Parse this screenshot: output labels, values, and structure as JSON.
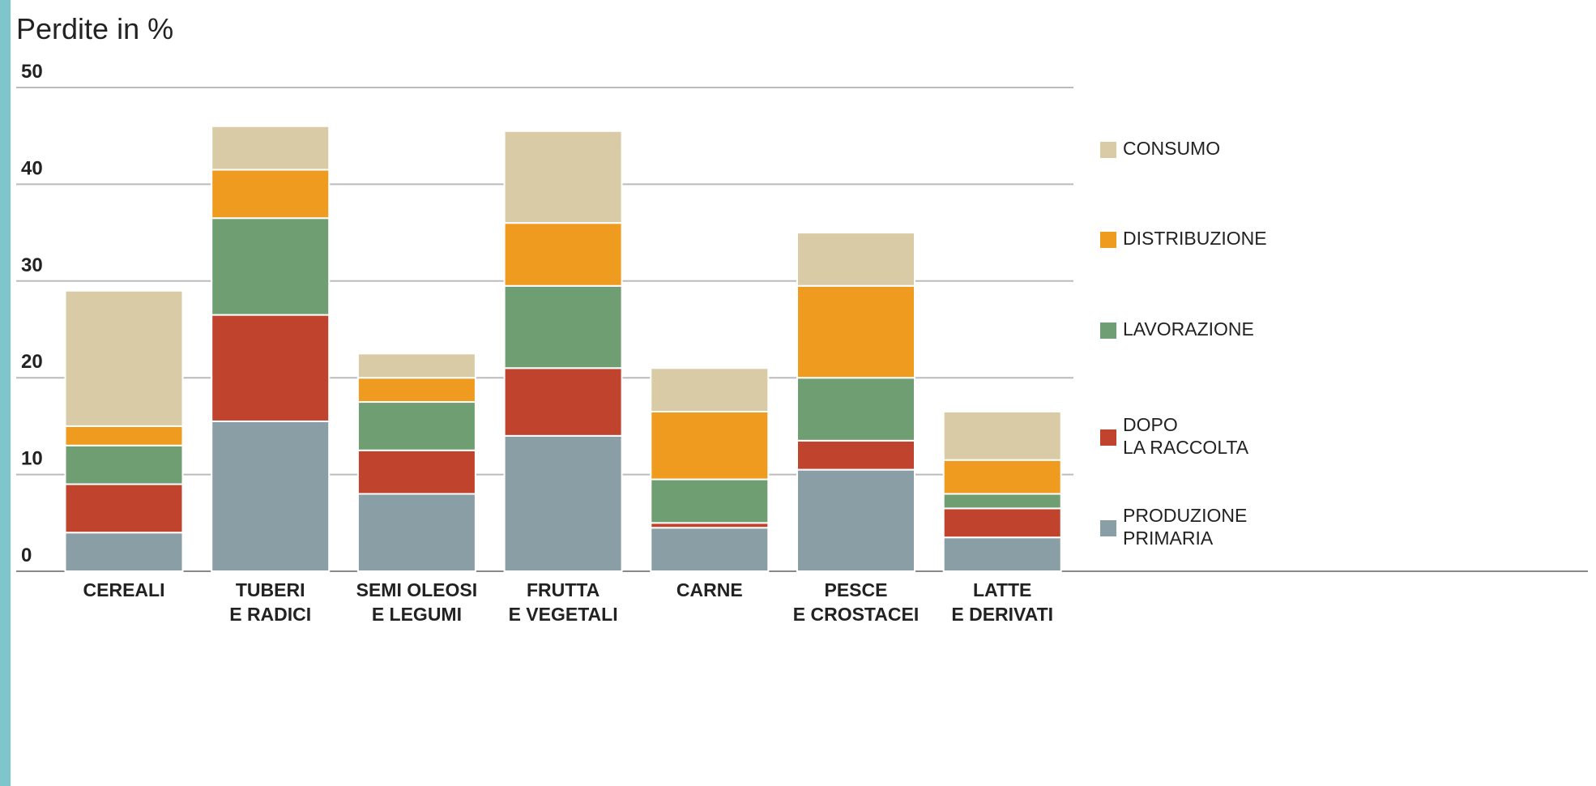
{
  "chart_data": {
    "type": "stacked_bar",
    "title": "Perdite in %",
    "categories": [
      "CEREALI",
      "TUBERI\nE RADICI",
      "SEMI OLEOSI\nE LEGUMI",
      "FRUTTA\nE VEGETALI",
      "CARNE",
      "PESCE\nE CROSTACEI",
      "LATTE\nE DERIVATI"
    ],
    "series": [
      {
        "name": "PRODUZIONE\nPRIMARIA",
        "color": "#8a9ea6",
        "values": [
          4,
          15.5,
          8,
          14,
          4.5,
          10.5,
          3.5
        ]
      },
      {
        "name": "DOPO\nLA RACCOLTA",
        "color": "#c0432e",
        "values": [
          5,
          11,
          4.5,
          7,
          0.5,
          3,
          3
        ]
      },
      {
        "name": "LAVORAZIONE",
        "color": "#6e9e72",
        "values": [
          4,
          10,
          5,
          8.5,
          4.5,
          6.5,
          1.5
        ]
      },
      {
        "name": "DISTRIBUZIONE",
        "color": "#ef9b1f",
        "values": [
          2,
          5,
          2.5,
          6.5,
          7,
          9.5,
          3.5
        ]
      },
      {
        "name": "CONSUMO",
        "color": "#d8cba5",
        "values": [
          14,
          4.5,
          2.5,
          9.5,
          4.5,
          5.5,
          5
        ]
      }
    ],
    "ylim": [
      0,
      50
    ],
    "yticks": [
      0,
      10,
      20,
      30,
      40,
      50
    ],
    "grid": true,
    "legend": "right"
  }
}
